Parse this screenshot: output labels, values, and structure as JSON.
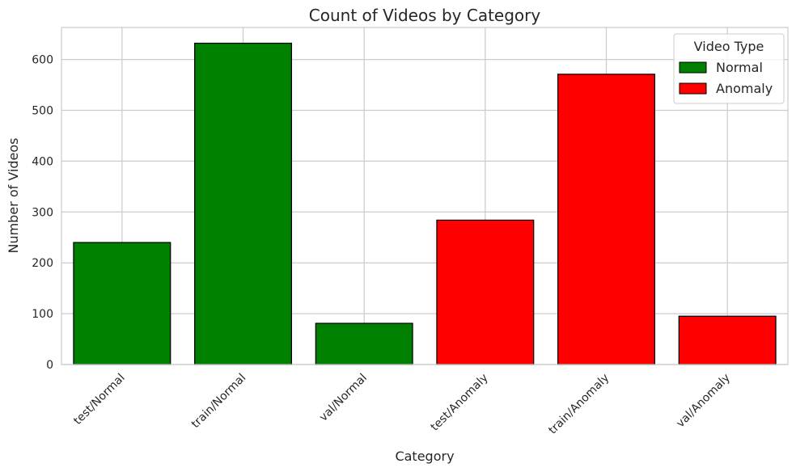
{
  "chart_data": {
    "type": "bar",
    "title": "Count of Videos by Category",
    "xlabel": "Category",
    "ylabel": "Number of Videos",
    "categories": [
      "test/Normal",
      "train/Normal",
      "val/Normal",
      "test/Anomaly",
      "train/Anomaly",
      "val/Anomaly"
    ],
    "values": [
      240,
      632,
      81,
      284,
      571,
      95
    ],
    "bar_types": [
      "Normal",
      "Normal",
      "Normal",
      "Anomaly",
      "Anomaly",
      "Anomaly"
    ],
    "ylim": [
      0,
      663
    ],
    "yticks": [
      0,
      100,
      200,
      300,
      400,
      500,
      600
    ],
    "grid": true,
    "legend": {
      "title": "Video Type",
      "placement": "top-right",
      "entries": [
        {
          "name": "Normal",
          "color": "#008000"
        },
        {
          "name": "Anomaly",
          "color": "#ff0000"
        }
      ]
    },
    "colors": {
      "Normal": "#008000",
      "Anomaly": "#ff0000"
    }
  }
}
